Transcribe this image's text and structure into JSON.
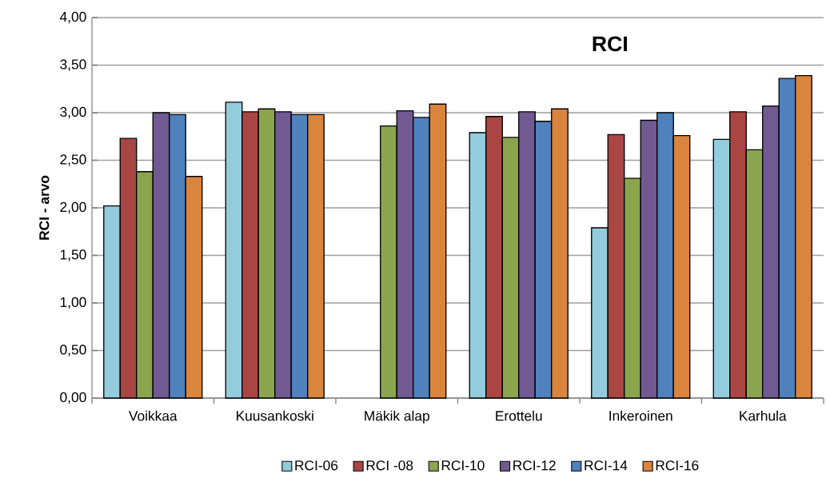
{
  "chart_data": {
    "type": "bar",
    "title": "RCI",
    "ylabel": "RCI - arvo",
    "categories": [
      "Voikkaa",
      "Kuusankoski",
      "Mäkik alap",
      "Erottelu",
      "Inkeroinen",
      "Karhula"
    ],
    "series": [
      {
        "name": "RCI-06",
        "color": "#93cddd",
        "values": [
          2.02,
          3.11,
          null,
          2.79,
          1.79,
          2.72
        ]
      },
      {
        "name": "RCI -08",
        "color": "#a94643",
        "values": [
          2.73,
          3.01,
          null,
          2.96,
          2.77,
          3.01
        ]
      },
      {
        "name": "RCI-10",
        "color": "#8ba54e",
        "values": [
          2.38,
          3.04,
          2.86,
          2.74,
          2.31,
          2.61
        ]
      },
      {
        "name": "RCI-12",
        "color": "#705a91",
        "values": [
          3.0,
          3.01,
          3.02,
          3.01,
          2.92,
          3.07
        ]
      },
      {
        "name": "RCI-14",
        "color": "#4f81bd",
        "values": [
          2.98,
          2.98,
          2.95,
          2.91,
          3.0,
          3.36
        ]
      },
      {
        "name": "RCI-16",
        "color": "#db843d",
        "values": [
          2.33,
          2.98,
          3.09,
          3.04,
          2.76,
          3.39
        ]
      }
    ],
    "ylim": [
      0,
      4
    ],
    "yticks": [
      {
        "value": 0,
        "label": "0,00"
      },
      {
        "value": 0.5,
        "label": "0,50"
      },
      {
        "value": 1,
        "label": "1,00"
      },
      {
        "value": 1.5,
        "label": "1,50"
      },
      {
        "value": 2,
        "label": "2,00"
      },
      {
        "value": 2.5,
        "label": "2,50"
      },
      {
        "value": 3,
        "label": "3,00"
      },
      {
        "value": 3.5,
        "label": "3,50"
      },
      {
        "value": 4,
        "label": "4,00"
      }
    ],
    "grid": "y",
    "legend": "bottom"
  }
}
